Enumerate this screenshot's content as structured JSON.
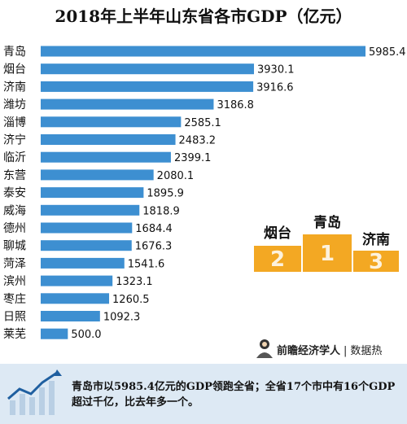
{
  "chart_data": {
    "type": "bar",
    "orientation": "horizontal",
    "title": "2018年上半年山东省各市GDP（亿元）",
    "categories": [
      "青岛",
      "烟台",
      "济南",
      "潍坊",
      "淄博",
      "济宁",
      "临沂",
      "东营",
      "泰安",
      "威海",
      "德州",
      "聊城",
      "菏泽",
      "滨州",
      "枣庄",
      "日照",
      "莱芜"
    ],
    "values": [
      5985.4,
      3930.1,
      3916.6,
      3186.8,
      2585.1,
      2483.2,
      2399.1,
      2080.1,
      1895.9,
      1818.9,
      1684.4,
      1676.3,
      1541.6,
      1323.1,
      1260.5,
      1092.3,
      500.0
    ],
    "value_labels": [
      "5985.4",
      "3930.1",
      "3916.6",
      "3186.8",
      "2585.1",
      "2483.2",
      "2399.1",
      "2080.1",
      "1895.9",
      "1818.9",
      "1684.4",
      "1676.3",
      "1541.6",
      "1323.1",
      "1260.5",
      "1092.3",
      "500.0"
    ],
    "bar_color": "#3d8fd1",
    "xlim": [
      0,
      6300
    ],
    "grid": false,
    "legend": false
  },
  "podium": {
    "color": "#f3a823",
    "places": [
      {
        "name": "烟台",
        "rank": "2"
      },
      {
        "name": "青岛",
        "rank": "1"
      },
      {
        "name": "济南",
        "rank": "3"
      }
    ]
  },
  "brand": {
    "name": "前瞻经济学人",
    "separator": "|",
    "sub": "数据热"
  },
  "footer": {
    "text": "青岛市以5985.4亿元的GDP领跑全省；全省17个市中有16个GDP超过千亿，比去年多一个。"
  }
}
